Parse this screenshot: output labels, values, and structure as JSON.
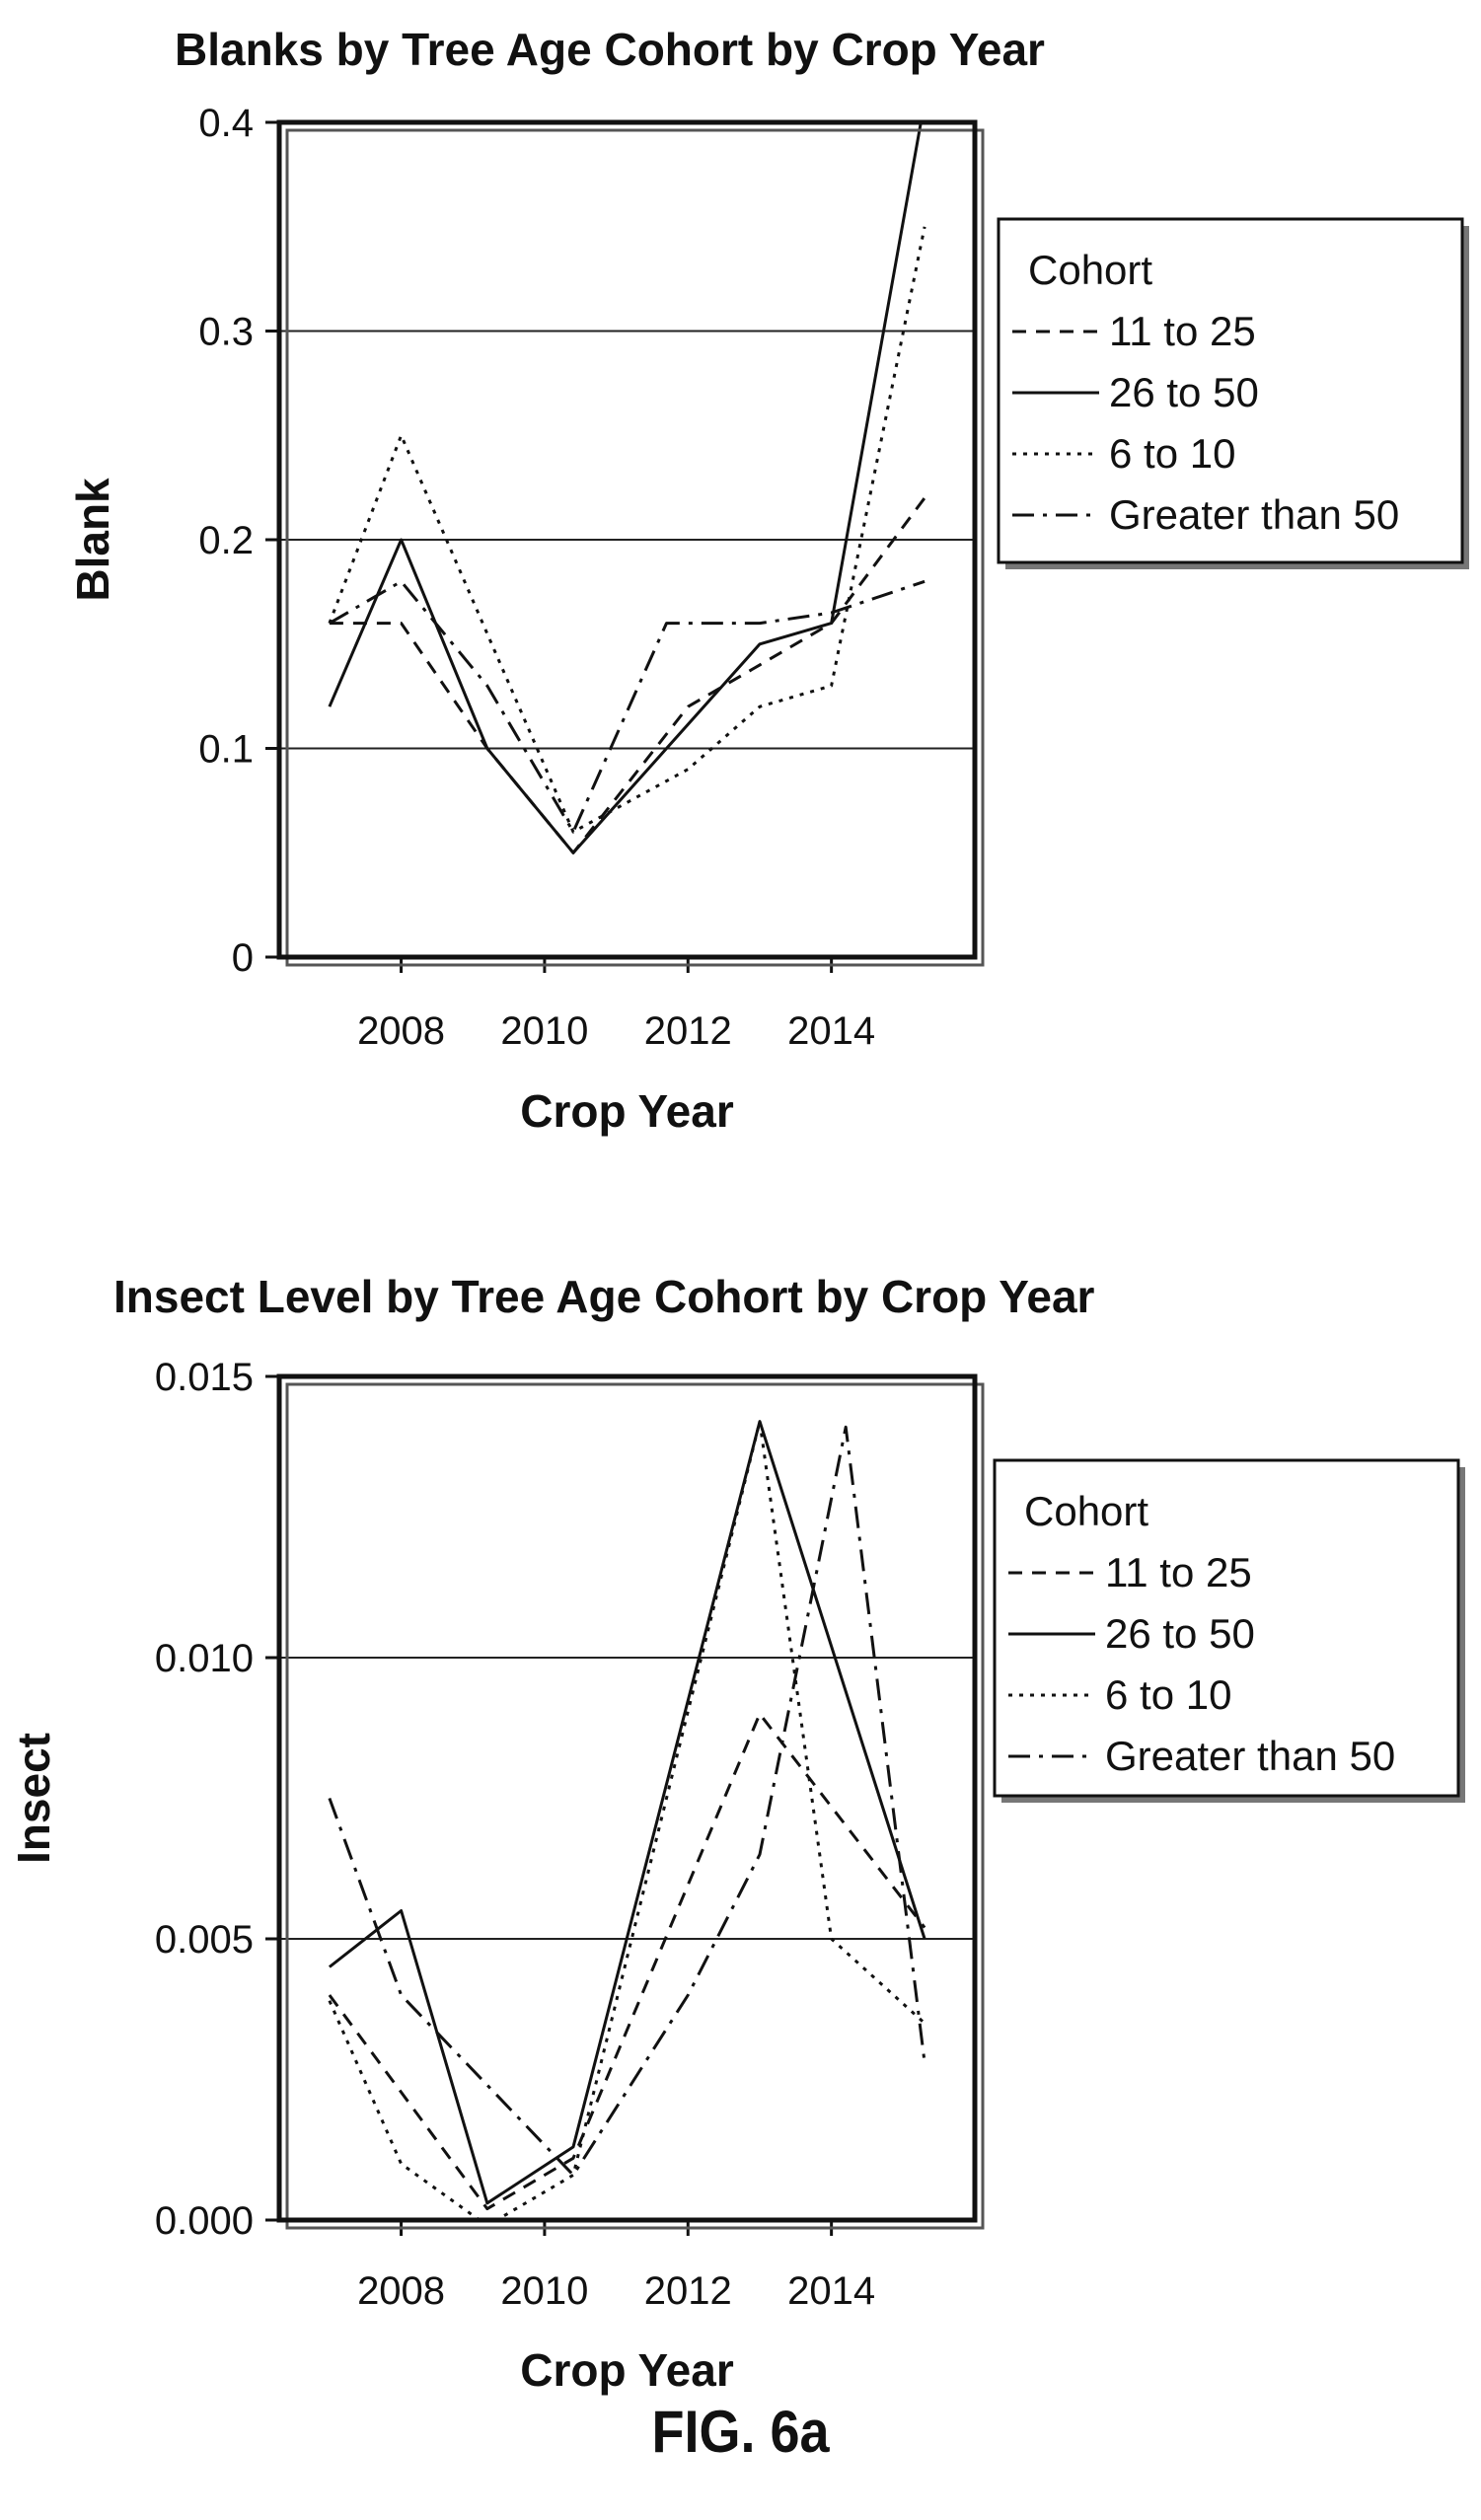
{
  "caption": "FIG. 6a",
  "chart_data": [
    {
      "type": "line",
      "title": "Blanks by Tree Age Cohort by Crop Year",
      "xlabel": "Crop Year",
      "ylabel": "Blank",
      "xlim": [
        2006.3,
        2016.0
      ],
      "ylim": [
        0,
        0.4
      ],
      "xticks": [
        2008,
        2010,
        2012,
        2014
      ],
      "yticks": [
        0,
        0.1,
        0.2,
        0.3,
        0.4
      ],
      "ytick_labels": [
        "0",
        "0.1",
        "0.2",
        "0.3",
        "0.4"
      ],
      "grid": "horizontal",
      "legend": {
        "title": "Cohort",
        "placement": "right, outside plot, top",
        "entries": [
          "11 to 25",
          "26 to 50",
          "6 to 10",
          "Greater than 50"
        ]
      },
      "series": [
        {
          "name": "11 to 25",
          "dash": "dashed",
          "x": [
            2007,
            2008,
            2009.2,
            2010.4,
            2012,
            2013,
            2014,
            2015.3
          ],
          "y": [
            0.16,
            0.16,
            0.1,
            0.05,
            0.12,
            0.14,
            0.16,
            0.22
          ]
        },
        {
          "name": "26 to 50",
          "dash": "solid",
          "x": [
            2007,
            2008,
            2009.2,
            2010.4,
            2013,
            2014,
            2015.3
          ],
          "y": [
            0.12,
            0.2,
            0.1,
            0.05,
            0.15,
            0.16,
            0.41
          ]
        },
        {
          "name": "6 to 10",
          "dash": "dotted",
          "x": [
            2007,
            2008,
            2010.4,
            2012,
            2013,
            2014,
            2015.3
          ],
          "y": [
            0.16,
            0.25,
            0.06,
            0.09,
            0.12,
            0.13,
            0.35
          ]
        },
        {
          "name": "Greater than 50",
          "dash": "dashdot",
          "x": [
            2007,
            2008,
            2009.2,
            2010.4,
            2011.7,
            2013,
            2014,
            2015.3
          ],
          "y": [
            0.16,
            0.18,
            0.13,
            0.06,
            0.16,
            0.16,
            0.165,
            0.18
          ]
        }
      ]
    },
    {
      "type": "line",
      "title": "Insect Level by Tree Age Cohort by Crop Year",
      "xlabel": "Crop Year",
      "ylabel": "Insect",
      "xlim": [
        2006.3,
        2016.0
      ],
      "ylim": [
        0,
        0.015
      ],
      "xticks": [
        2008,
        2010,
        2012,
        2014
      ],
      "yticks": [
        0,
        0.005,
        0.01,
        0.015
      ],
      "ytick_labels": [
        "0.000",
        "0.005",
        "0.010",
        "0.015"
      ],
      "grid": "horizontal",
      "legend": {
        "title": "Cohort",
        "placement": "right, outside plot, top",
        "entries": [
          "11 to 25",
          "26 to 50",
          "6 to 10",
          "Greater than 50"
        ]
      },
      "series": [
        {
          "name": "11 to 25",
          "dash": "dashed",
          "x": [
            2007,
            2009.2,
            2010.4,
            2013,
            2015.3
          ],
          "y": [
            0.004,
            0.0002,
            0.0011,
            0.009,
            0.0052
          ]
        },
        {
          "name": "26 to 50",
          "dash": "solid",
          "x": [
            2007,
            2008,
            2009.2,
            2010.4,
            2013,
            2015.3
          ],
          "y": [
            0.0045,
            0.0055,
            0.0003,
            0.0013,
            0.0142,
            0.005
          ]
        },
        {
          "name": "6 to 10",
          "dash": "dotted",
          "x": [
            2007,
            2008,
            2009.2,
            2010.4,
            2013,
            2014,
            2015.3
          ],
          "y": [
            0.0039,
            0.001,
            -0.0001,
            0.0008,
            0.0142,
            0.005,
            0.0035
          ]
        },
        {
          "name": "Greater than 50",
          "dash": "dashdot",
          "x": [
            2007,
            2008,
            2010.4,
            2012,
            2013,
            2014.2,
            2015.3
          ],
          "y": [
            0.0075,
            0.004,
            0.0008,
            0.004,
            0.0065,
            0.0141,
            0.0028
          ]
        }
      ]
    }
  ]
}
